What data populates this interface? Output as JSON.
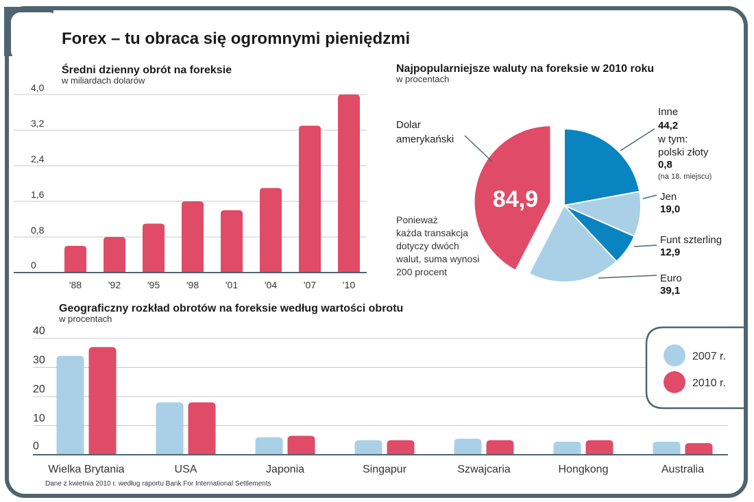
{
  "title": "Forex – tu obraca się ogromnymi pieniędzmi",
  "colors": {
    "red": "#e04b68",
    "light": "#a9d0e6",
    "blue": "#0a84c0",
    "frame": "#4f6470"
  },
  "source": "Dane z kwietnia 2010 r. według raportu Bank For International Settlements",
  "chart_data": [
    {
      "type": "bar",
      "title": "Średni dzienny obrót na foreksie",
      "unit": "w miliardach dolarów",
      "categories": [
        "'88",
        "'92",
        "'95",
        "'98",
        "'01",
        "'04",
        "'07",
        "'10"
      ],
      "values": [
        0.6,
        0.8,
        1.1,
        1.6,
        1.4,
        1.9,
        3.3,
        4.0
      ],
      "yticks": [
        "4,0",
        "3,2",
        "2,4",
        "1,6",
        "0,8",
        "0"
      ],
      "ylim": [
        0,
        4.0
      ]
    },
    {
      "type": "pie",
      "title": "Najpopularniejsze waluty na foreksie w 2010 roku",
      "unit": "w procentach",
      "slices": [
        {
          "name": "Inne",
          "value": 44.2,
          "display": "44,2",
          "color": "#0a84c0"
        },
        {
          "name": "Jen",
          "value": 19.0,
          "display": "19,0",
          "color": "#a9d0e6"
        },
        {
          "name": "Funt szterling",
          "value": 12.9,
          "display": "12,9",
          "color": "#0a84c0"
        },
        {
          "name": "Euro",
          "value": 39.1,
          "display": "39,1",
          "color": "#a9d0e6"
        },
        {
          "name": "Dolar amerykański",
          "value": 84.9,
          "display": "84,9",
          "color": "#e04b68"
        }
      ],
      "labels": {
        "dolar_1": "Dolar",
        "dolar_2": "amerykański",
        "inne": "Inne",
        "inne_value": "44,2",
        "w_tym": "w tym:",
        "pln": "polski złoty",
        "pln_value": "0,8",
        "pln_note": "(na 18. miejscu)",
        "jen": "Jen",
        "jen_value": "19,0",
        "funt": "Funt szterling",
        "funt_value": "12,9",
        "euro": "Euro",
        "euro_value": "39,1",
        "center_value": "84,9"
      },
      "note": [
        "Ponieważ",
        "każda transakcja",
        "dotyczy dwóch",
        "walut, suma wynosi",
        "200 procent"
      ]
    },
    {
      "type": "bar",
      "title": "Geograficzny rozkład obrotów na foreksie według wartości obrotu",
      "unit": "w procentach",
      "categories": [
        "Wielka Brytania",
        "USA",
        "Japonia",
        "Singapur",
        "Szwajcaria",
        "Hongkong",
        "Australia"
      ],
      "series": [
        {
          "name": "2007 r.",
          "color": "#a9d0e6",
          "values": [
            34.0,
            18.0,
            6.0,
            5.0,
            5.5,
            4.5,
            4.5
          ]
        },
        {
          "name": "2010 r.",
          "color": "#e04b68",
          "values": [
            37.0,
            18.0,
            6.5,
            5.0,
            5.0,
            5.0,
            4.0
          ]
        }
      ],
      "yticks": [
        "40",
        "30",
        "20",
        "10",
        "0"
      ],
      "ylim": [
        0,
        40
      ]
    }
  ]
}
